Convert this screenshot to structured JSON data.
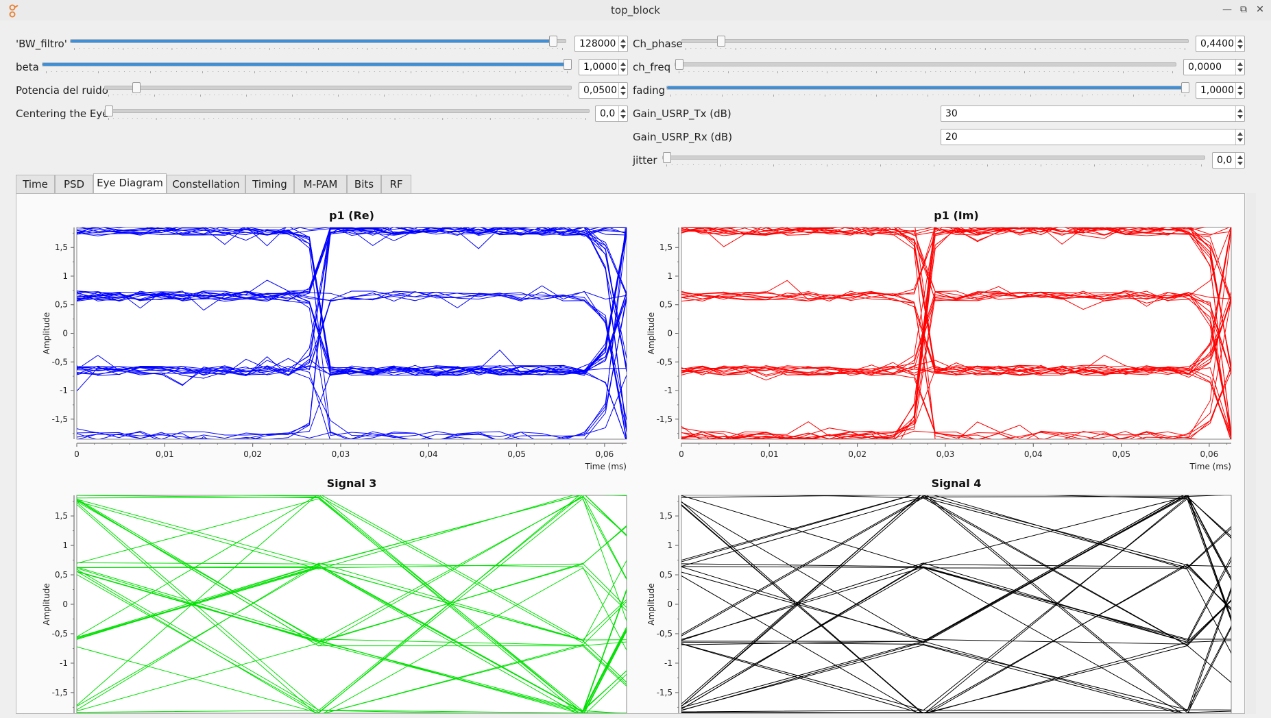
{
  "window": {
    "title": "top_block"
  },
  "controls_left": [
    {
      "label": "'BW_filtro'",
      "value": "128000",
      "fraction": 0.98
    },
    {
      "label": "beta",
      "value": "1,0000",
      "fraction": 1.0
    },
    {
      "label": "Potencia del ruido",
      "value": "0,0500",
      "fraction": 0.06
    },
    {
      "label": "Centering the Eye",
      "value": "0,0",
      "fraction": 0.0
    }
  ],
  "controls_right": [
    {
      "label": "Ch_phase",
      "value": "0,4400",
      "fraction": 0.07,
      "type": "slider"
    },
    {
      "label": "ch_freq",
      "value": "0,0000",
      "fraction": 0.0,
      "type": "slider"
    },
    {
      "label": "fading",
      "value": "1,0000",
      "fraction": 1.0,
      "type": "slider"
    },
    {
      "label": "Gain_USRP_Tx (dB)",
      "value": "30",
      "type": "spin"
    },
    {
      "label": "Gain_USRP_Rx (dB)",
      "value": "20",
      "type": "spin"
    },
    {
      "label": "jitter",
      "value": "0,0",
      "fraction": 0.0,
      "type": "slider"
    }
  ],
  "tabs": [
    "Time",
    "PSD",
    "Eye Diagram",
    "Constellation",
    "Timing",
    "M-PAM",
    "Bits",
    "RF"
  ],
  "active_tab": "Eye Diagram",
  "colors": {
    "accent": "#3d8fd9",
    "p1_re": "#0000ff",
    "p1_im": "#ff0000",
    "signal3": "#00e000",
    "signal4": "#000000"
  },
  "chart_data": [
    {
      "type": "line",
      "title": "p1 (Re)",
      "ylabel": "Amplitude",
      "xlabel": "Time (ms)",
      "xlim": [
        0,
        0.0625
      ],
      "ylim": [
        -1.85,
        1.85
      ],
      "xticks": [
        "0",
        "0,01",
        "0,02",
        "0,03",
        "0,04",
        "0,05",
        "0,06"
      ],
      "yticks": [
        "1,5",
        "1",
        "0,5",
        "0",
        "-0,5",
        "-1",
        "-1,5"
      ],
      "color": "#0000ff",
      "eye": "pam4",
      "levels": [
        -1.8,
        -0.65,
        0.65,
        1.8
      ]
    },
    {
      "type": "line",
      "title": "p1 (Im)",
      "ylabel": "Amplitude",
      "xlabel": "Time (ms)",
      "xlim": [
        0,
        0.0625
      ],
      "ylim": [
        -1.85,
        1.85
      ],
      "xticks": [
        "0",
        "0,01",
        "0,02",
        "0,03",
        "0,04",
        "0,05",
        "0,06"
      ],
      "yticks": [
        "1,5",
        "1",
        "0,5",
        "0",
        "-0,5",
        "-1",
        "-1,5"
      ],
      "color": "#ff0000",
      "eye": "pam4",
      "levels": [
        -1.8,
        -0.65,
        0.65,
        1.8
      ]
    },
    {
      "type": "line",
      "title": "Signal 3",
      "ylabel": "Amplitude",
      "xlabel": "",
      "ylim": [
        -1.85,
        1.85
      ],
      "yticks": [
        "1,5",
        "1",
        "0,5",
        "0",
        "-0,5",
        "-1",
        "-1,5"
      ],
      "color": "#00e000",
      "eye": "triangular",
      "levels": [
        -1.85,
        -0.65,
        0.65,
        1.85
      ]
    },
    {
      "type": "line",
      "title": "Signal 4",
      "ylabel": "Amplitude",
      "xlabel": "",
      "ylim": [
        -1.85,
        1.85
      ],
      "yticks": [
        "1,5",
        "1",
        "0,5",
        "0",
        "-0,5",
        "-1",
        "-1,5"
      ],
      "color": "#000000",
      "eye": "triangular",
      "levels": [
        -1.85,
        -0.65,
        0.65,
        1.85
      ]
    }
  ]
}
